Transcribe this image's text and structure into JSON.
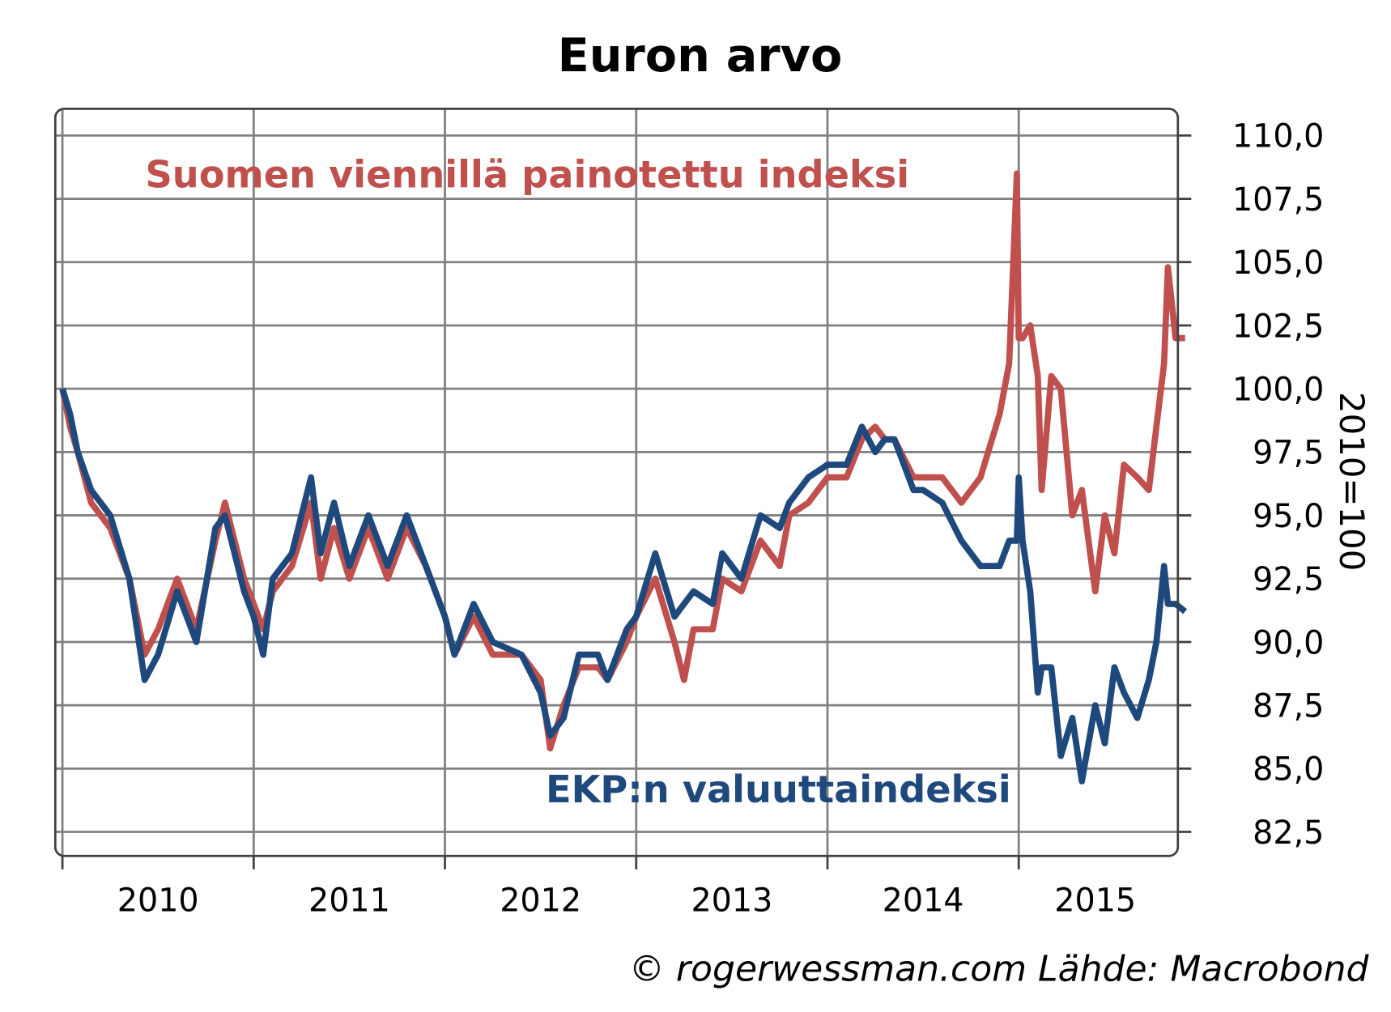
{
  "chart_data": {
    "type": "line",
    "title": "Euron arvo",
    "ylabel": "2010=100",
    "xlabel": "",
    "ylim": [
      81.5,
      111
    ],
    "xlim": [
      2009.96,
      2015.92
    ],
    "y_ticks": [
      "110,0",
      "107,5",
      "105,0",
      "102,5",
      "100,0",
      "97,5",
      "95,0",
      "92,5",
      "90,0",
      "87,5",
      "85,0",
      "82,5"
    ],
    "y_tick_values": [
      110,
      107.5,
      105,
      102.5,
      100,
      97.5,
      95,
      92.5,
      90,
      87.5,
      85,
      82.5
    ],
    "x_ticks": [
      "2010",
      "2011",
      "2012",
      "2013",
      "2014",
      "2015"
    ],
    "grid": true,
    "colors": {
      "red": "#c0504d",
      "blue": "#1f497d"
    },
    "series": [
      {
        "name": "Suomen viennillä painotettu indeksi",
        "color": "#c0504d",
        "x": [
          2010.0,
          2010.04,
          2010.08,
          2010.15,
          2010.25,
          2010.35,
          2010.43,
          2010.5,
          2010.6,
          2010.7,
          2010.8,
          2010.85,
          2010.95,
          2011.0,
          2011.05,
          2011.1,
          2011.2,
          2011.3,
          2011.35,
          2011.42,
          2011.5,
          2011.6,
          2011.7,
          2011.8,
          2011.9,
          2012.0,
          2012.05,
          2012.15,
          2012.25,
          2012.4,
          2012.5,
          2012.55,
          2012.62,
          2012.7,
          2012.8,
          2012.85,
          2012.95,
          2013.0,
          2013.1,
          2013.2,
          2013.25,
          2013.3,
          2013.4,
          2013.45,
          2013.55,
          2013.65,
          2013.75,
          2013.8,
          2013.9,
          2014.0,
          2014.1,
          2014.18,
          2014.25,
          2014.3,
          2014.35,
          2014.45,
          2014.5,
          2014.6,
          2014.7,
          2014.8,
          2014.9,
          2014.95,
          2014.99,
          2015.0,
          2015.02,
          2015.06,
          2015.1,
          2015.12,
          2015.17,
          2015.22,
          2015.28,
          2015.33,
          2015.4,
          2015.45,
          2015.5,
          2015.55,
          2015.62,
          2015.68,
          2015.72,
          2015.76,
          2015.78,
          2015.82,
          2015.87
        ],
        "values": [
          100,
          98.5,
          97.5,
          95.5,
          94.5,
          92.5,
          89.5,
          90.5,
          92.5,
          90.5,
          94,
          95.5,
          92.5,
          91.5,
          90.5,
          92,
          93,
          95.5,
          92.5,
          94.5,
          92.5,
          94.5,
          92.5,
          94.5,
          93,
          91,
          89.5,
          91,
          89.5,
          89.5,
          88.5,
          85.8,
          87.5,
          89,
          89,
          88.5,
          90,
          91,
          92.5,
          90,
          88.5,
          90.5,
          90.5,
          92.5,
          92,
          94,
          93,
          95,
          95.5,
          96.5,
          96.5,
          98,
          98.5,
          98,
          98,
          96.5,
          96.5,
          96.5,
          95.5,
          96.5,
          99,
          101,
          108.5,
          102,
          102,
          102.5,
          100.5,
          96,
          100.5,
          100,
          95,
          96,
          92,
          95,
          93.5,
          97,
          96.5,
          96,
          98.5,
          101,
          104.8,
          102,
          102
        ]
      },
      {
        "name": "EKP:n valuuttaindeksi",
        "color": "#1f497d",
        "x": [
          2010.0,
          2010.04,
          2010.08,
          2010.15,
          2010.25,
          2010.35,
          2010.43,
          2010.5,
          2010.6,
          2010.7,
          2010.8,
          2010.85,
          2010.95,
          2011.0,
          2011.05,
          2011.1,
          2011.2,
          2011.3,
          2011.35,
          2011.42,
          2011.5,
          2011.6,
          2011.7,
          2011.8,
          2011.9,
          2012.0,
          2012.05,
          2012.15,
          2012.25,
          2012.4,
          2012.5,
          2012.55,
          2012.62,
          2012.7,
          2012.8,
          2012.85,
          2012.95,
          2013.0,
          2013.1,
          2013.2,
          2013.25,
          2013.3,
          2013.4,
          2013.45,
          2013.55,
          2013.65,
          2013.75,
          2013.8,
          2013.9,
          2014.0,
          2014.1,
          2014.18,
          2014.25,
          2014.3,
          2014.35,
          2014.45,
          2014.5,
          2014.6,
          2014.7,
          2014.8,
          2014.9,
          2014.95,
          2014.99,
          2015.0,
          2015.02,
          2015.06,
          2015.1,
          2015.12,
          2015.17,
          2015.22,
          2015.28,
          2015.33,
          2015.4,
          2015.45,
          2015.5,
          2015.55,
          2015.62,
          2015.68,
          2015.72,
          2015.76,
          2015.78,
          2015.82,
          2015.87
        ],
        "values": [
          100,
          99,
          97.5,
          96,
          95,
          92.5,
          88.5,
          89.5,
          92,
          90,
          94.5,
          95,
          92,
          91,
          89.5,
          92.5,
          93.5,
          96.5,
          93.5,
          95.5,
          93,
          95,
          93,
          95,
          93,
          91,
          89.5,
          91.5,
          90,
          89.5,
          88,
          86.3,
          87,
          89.5,
          89.5,
          88.5,
          90.5,
          91,
          93.5,
          91,
          91.5,
          92,
          91.5,
          93.5,
          92.5,
          95,
          94.5,
          95.5,
          96.5,
          97,
          97,
          98.5,
          97.5,
          98,
          98,
          96,
          96,
          95.5,
          94,
          93,
          93,
          94,
          94,
          96.5,
          94,
          92,
          88,
          89,
          89,
          85.5,
          87,
          84.5,
          87.5,
          86,
          89,
          88,
          87,
          88.5,
          90,
          93,
          91.5,
          91.5,
          91.2
        ]
      }
    ],
    "annotations": {
      "red_label": "Suomen viennillä painotettu indeksi",
      "blue_label": "EKP:n valuuttaindeksi",
      "source": "© rogerwessman.com Lähde: Macrobond"
    }
  }
}
